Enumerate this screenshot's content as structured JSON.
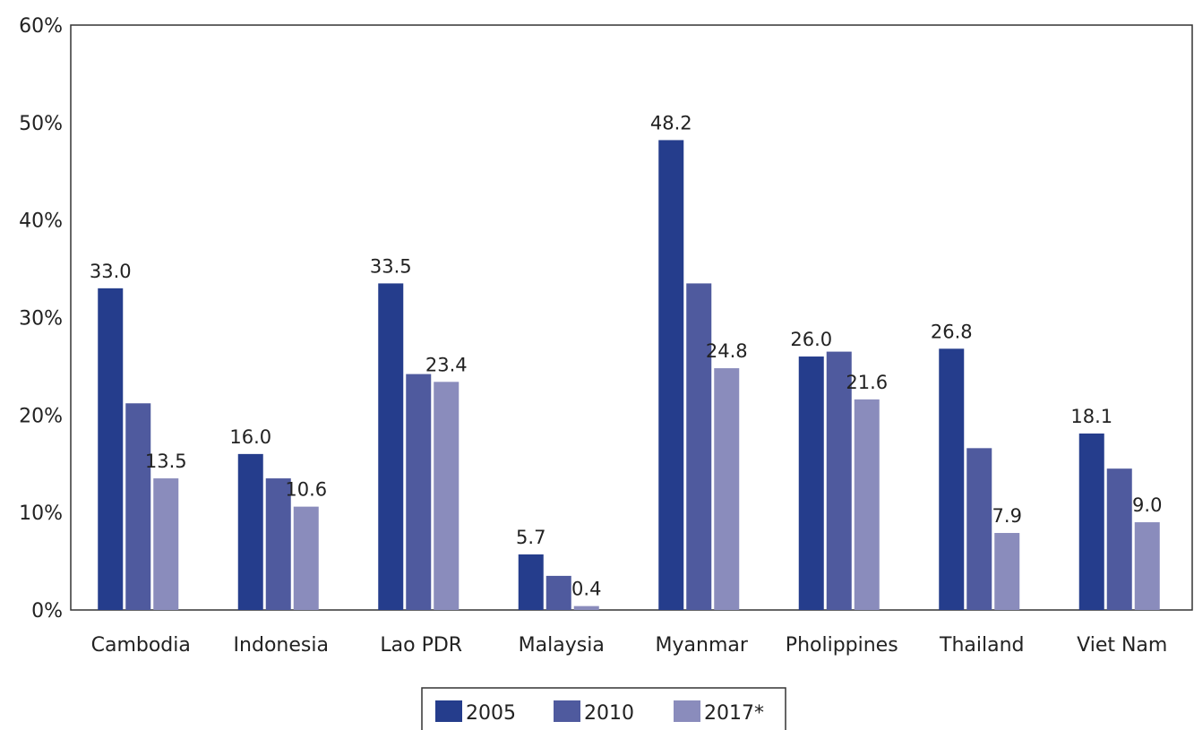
{
  "chart_data": {
    "type": "bar",
    "categories": [
      "Cambodia",
      "Indonesia",
      "Lao PDR",
      "Malaysia",
      "Myanmar",
      "Pholippines",
      "Thailand",
      "Viet Nam"
    ],
    "series": [
      {
        "name": "2005",
        "color": "#253d8c",
        "values": [
          33.0,
          16.0,
          33.5,
          5.7,
          48.2,
          26.0,
          26.8,
          18.1
        ],
        "labels": [
          "33.0",
          "16.0",
          "33.5",
          "5.7",
          "48.2",
          "26.0",
          "26.8",
          "18.1"
        ]
      },
      {
        "name": "2010",
        "color": "#4f5a9e",
        "values": [
          21.2,
          13.5,
          24.2,
          3.5,
          33.5,
          26.5,
          16.6,
          14.5
        ],
        "labels": [
          "",
          "",
          "",
          "",
          "",
          "",
          "",
          ""
        ]
      },
      {
        "name": "2017*",
        "color": "#8a8cbc",
        "values": [
          13.5,
          10.6,
          23.4,
          0.4,
          24.8,
          21.6,
          7.9,
          9.0
        ],
        "labels": [
          "13.5",
          "10.6",
          "23.4",
          "0.4",
          "24.8",
          "21.6",
          "7.9",
          "9.0"
        ]
      }
    ],
    "yticks": [
      "0%",
      "10%",
      "20%",
      "30%",
      "40%",
      "50%",
      "60%"
    ],
    "ylim": [
      0,
      60
    ],
    "title": "",
    "xlabel": "",
    "ylabel": "",
    "grid": false,
    "legend_position": "bottom-center"
  }
}
